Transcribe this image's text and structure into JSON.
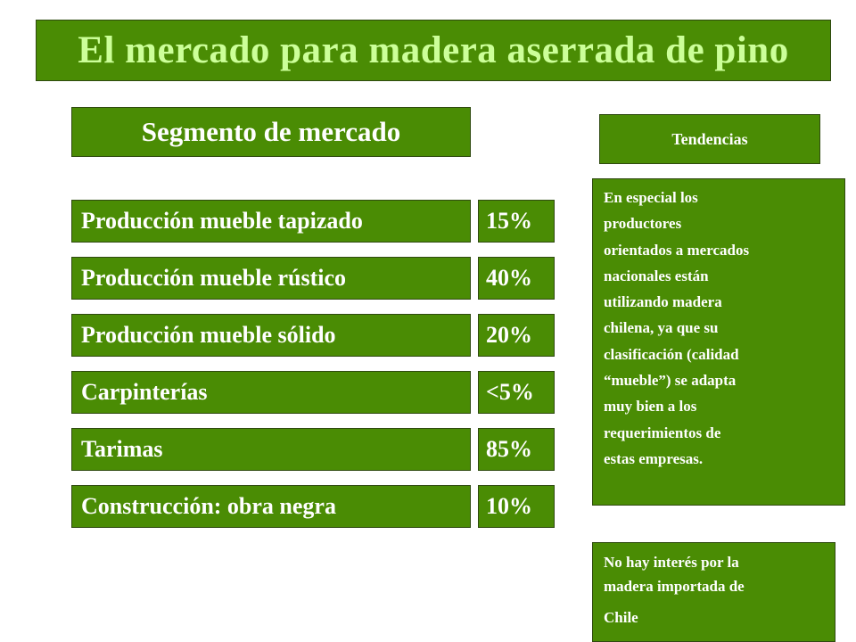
{
  "title": "El mercado para madera aserrada de pino",
  "segment_header": "Segmento de mercado",
  "trends_header": "Tendencias",
  "segments": [
    {
      "label": "Producción mueble tapizado",
      "value": "15%"
    },
    {
      "label": "Producción mueble rústico",
      "value": "40%"
    },
    {
      "label": "Producción mueble sólido",
      "value": "20%"
    },
    {
      "label": "Carpinterías",
      "value": "<5%"
    },
    {
      "label": "Tarimas",
      "value": "85%"
    },
    {
      "label": "Construcción: obra negra",
      "value": "10%"
    }
  ],
  "trends": {
    "text1_lines": [
      "En especial los",
      "productores",
      "orientados a mercados",
      "nacionales están",
      "utilizando madera",
      "chilena, ya que su",
      "clasificación (calidad",
      "“mueble”) se adapta",
      "muy bien a los",
      "requerimientos de",
      "estas empresas."
    ],
    "text2_lines": [
      "No hay interés por la",
      "madera importada de",
      "Chile"
    ]
  },
  "colors": {
    "box_fill": "#4a8c04",
    "title_text": "#ccff99",
    "body_text": "#ffffff"
  }
}
